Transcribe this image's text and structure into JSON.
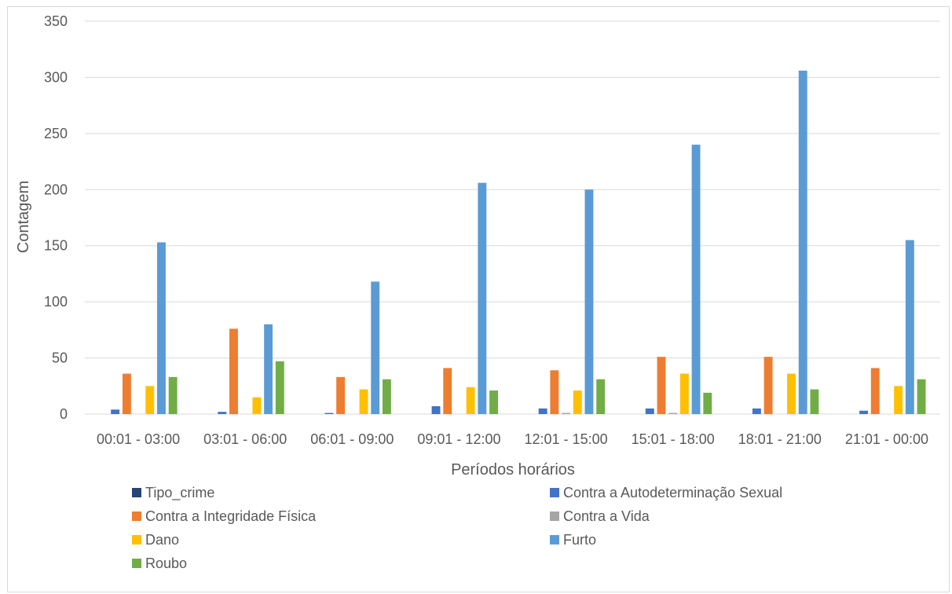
{
  "chart_data": {
    "type": "bar",
    "title": "",
    "xlabel": "Períodos horários",
    "ylabel": "Contagem",
    "ylim": [
      0,
      350
    ],
    "yticks": [
      0,
      50,
      100,
      150,
      200,
      250,
      300,
      350
    ],
    "grid": true,
    "legend_position": "bottom",
    "categories": [
      "00:01 - 03:00",
      "03:01 - 06:00",
      "06:01 - 09:00",
      "09:01 - 12:00",
      "12:01 - 15:00",
      "15:01 - 18:00",
      "18:01 - 21:00",
      "21:01 - 00:00"
    ],
    "series": [
      {
        "name": "Tipo_crime",
        "color": "#264478",
        "values": [
          0,
          0,
          0,
          0,
          0,
          0,
          0,
          0
        ]
      },
      {
        "name": "Contra a Autodeterminação Sexual",
        "color": "#4472C4",
        "values": [
          4,
          2,
          1,
          7,
          5,
          5,
          5,
          3
        ]
      },
      {
        "name": "Contra a Integridade Física",
        "color": "#ED7D31",
        "values": [
          36,
          76,
          33,
          41,
          39,
          51,
          51,
          41
        ]
      },
      {
        "name": "Contra a Vida",
        "color": "#A5A5A5",
        "values": [
          0,
          0,
          0,
          0,
          1,
          1,
          0,
          0
        ]
      },
      {
        "name": "Dano",
        "color": "#FFC000",
        "values": [
          25,
          15,
          22,
          24,
          21,
          36,
          36,
          25
        ]
      },
      {
        "name": "Furto",
        "color": "#5B9BD5",
        "values": [
          153,
          80,
          118,
          206,
          200,
          240,
          306,
          155
        ]
      },
      {
        "name": "Roubo",
        "color": "#70AD47",
        "values": [
          33,
          47,
          31,
          21,
          31,
          19,
          22,
          31
        ]
      }
    ]
  }
}
